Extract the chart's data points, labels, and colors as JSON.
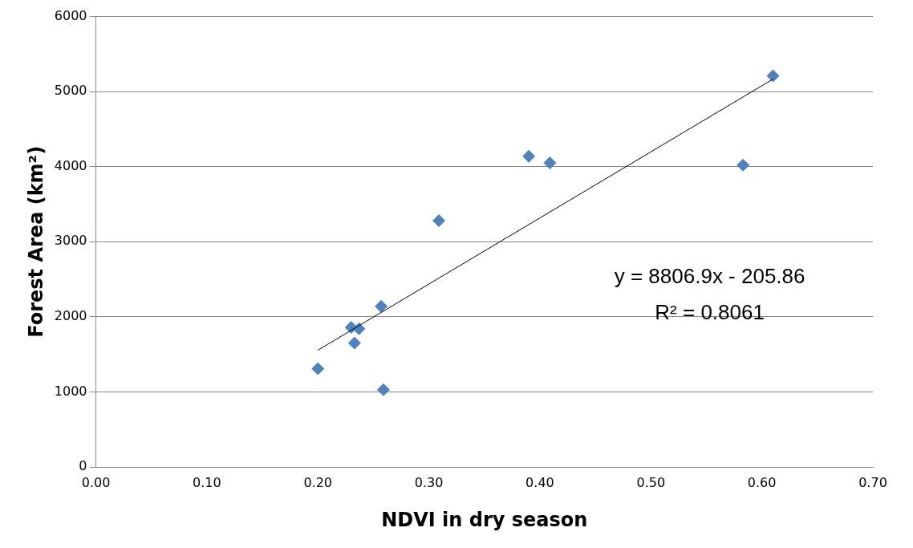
{
  "chart_data": {
    "type": "scatter",
    "xlabel": "NDVI in dry season",
    "ylabel": "Forest Area (km²)",
    "series": [
      {
        "marker": "diamond",
        "color": "#4f81bd",
        "x": [
          0.2,
          0.23,
          0.233,
          0.237,
          0.257,
          0.259,
          0.309,
          0.39,
          0.409,
          0.583,
          0.61
        ],
        "values": [
          1310,
          1860,
          1650,
          1840,
          2140,
          1030,
          3280,
          4140,
          4050,
          4020,
          5210
        ]
      },
      {
        "type": "line",
        "marker": "none",
        "color": "#000000",
        "x": [
          0.2,
          0.61
        ],
        "values": [
          1556,
          5166
        ]
      }
    ],
    "grid": "y",
    "legend": false,
    "xlim": [
      0,
      0.7
    ],
    "xticks": [
      {
        "value": 0,
        "label": "0.00"
      },
      {
        "value": 0.1,
        "label": "0.10"
      },
      {
        "value": 0.2,
        "label": "0.20"
      },
      {
        "value": 0.3,
        "label": "0.30"
      },
      {
        "value": 0.4,
        "label": "0.40"
      },
      {
        "value": 0.5,
        "label": "0.50"
      },
      {
        "value": 0.6,
        "label": "0.60"
      },
      {
        "value": 0.7,
        "label": "0.70"
      }
    ],
    "ylim": [
      0,
      6000
    ],
    "yticks": [
      0,
      1000,
      2000,
      3000,
      4000,
      5000,
      6000
    ],
    "annotations": [
      "y = 8806.9x - 205.86",
      "R² = 0.8061"
    ]
  }
}
